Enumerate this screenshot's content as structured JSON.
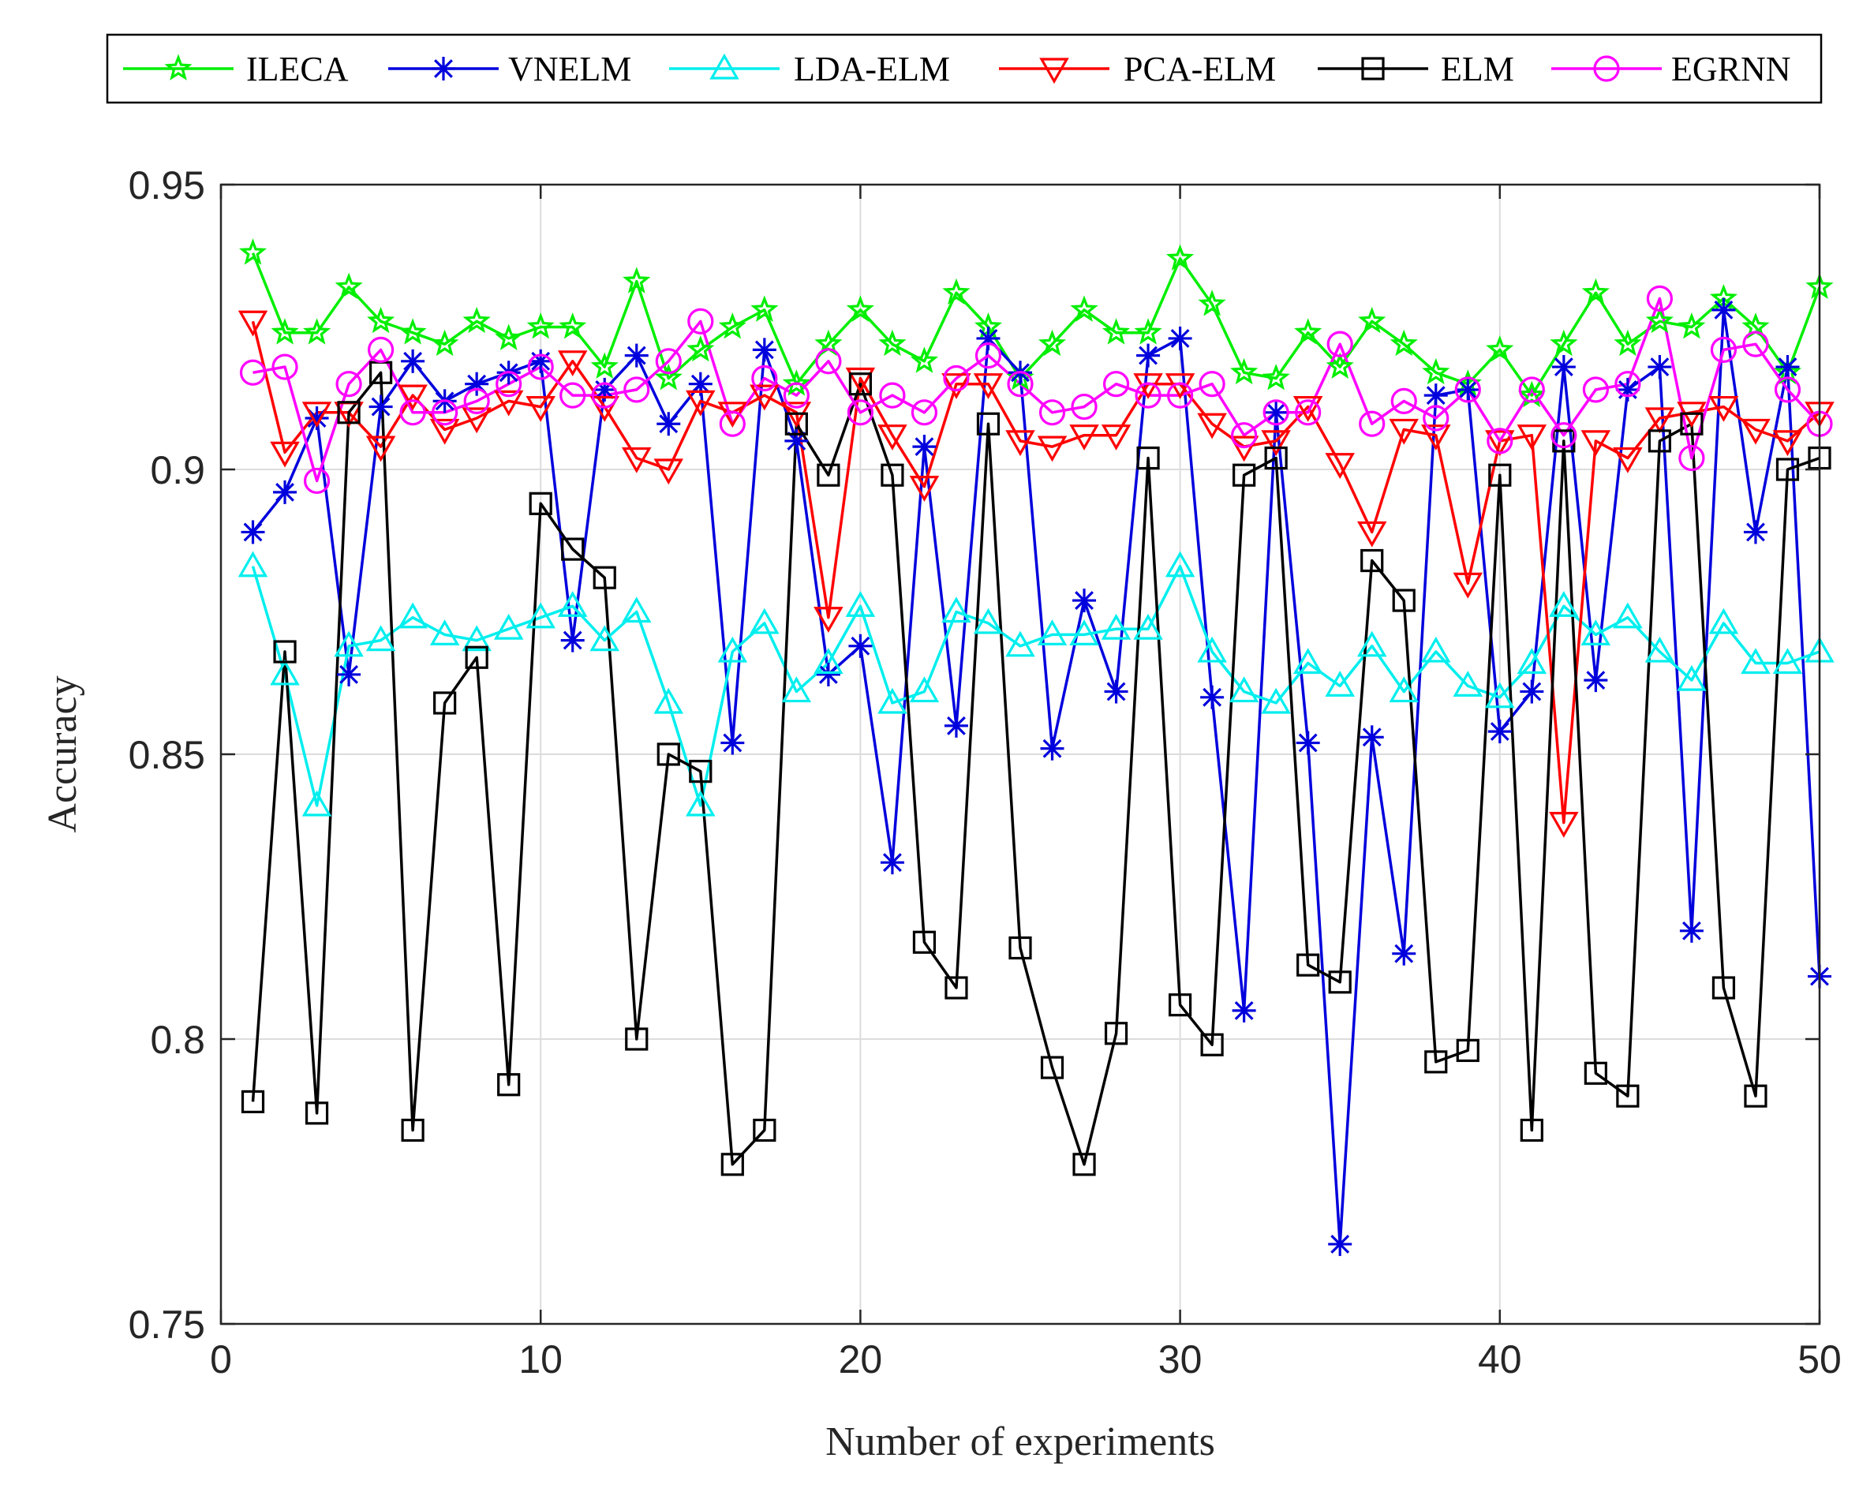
{
  "chart_data": {
    "type": "line",
    "title": "",
    "xlabel": "Number of experiments",
    "ylabel": "Accuracy",
    "xlim": [
      0,
      50
    ],
    "ylim": [
      0.75,
      0.95
    ],
    "xticks": [
      0,
      10,
      20,
      30,
      40,
      50
    ],
    "xtick_labels": [
      "0",
      "10",
      "20",
      "30",
      "40",
      "50"
    ],
    "yticks": [
      0.75,
      0.8,
      0.85,
      0.9,
      0.95
    ],
    "ytick_labels": [
      "0.75",
      "0.8",
      "0.85",
      "0.9",
      "0.95"
    ],
    "grid": true,
    "legend_position": "top, horizontal, outside plot",
    "x": [
      1,
      2,
      3,
      4,
      5,
      6,
      7,
      8,
      9,
      10,
      11,
      12,
      13,
      14,
      15,
      16,
      17,
      18,
      19,
      20,
      21,
      22,
      23,
      24,
      25,
      26,
      27,
      28,
      29,
      30,
      31,
      32,
      33,
      34,
      35,
      36,
      37,
      38,
      39,
      40,
      41,
      42,
      43,
      44,
      45,
      46,
      47,
      48,
      49,
      50
    ],
    "series": [
      {
        "name": "ILECA",
        "color": "#00ee00",
        "marker": "star",
        "values": [
          0.938,
          0.924,
          0.924,
          0.932,
          0.926,
          0.924,
          0.922,
          0.926,
          0.923,
          0.925,
          0.925,
          0.918,
          0.933,
          0.916,
          0.921,
          0.925,
          0.928,
          0.915,
          0.922,
          0.928,
          0.922,
          0.919,
          0.931,
          0.925,
          0.916,
          0.922,
          0.928,
          0.924,
          0.924,
          0.937,
          0.929,
          0.917,
          0.916,
          0.924,
          0.918,
          0.926,
          0.922,
          0.917,
          0.915,
          0.921,
          0.913,
          0.922,
          0.931,
          0.922,
          0.926,
          0.925,
          0.93,
          0.925,
          0.917,
          0.932
        ]
      },
      {
        "name": "VNELM",
        "color": "#0000dd",
        "marker": "asterisk",
        "values": [
          0.889,
          0.896,
          0.909,
          0.864,
          0.911,
          0.919,
          0.912,
          0.915,
          0.917,
          0.919,
          0.87,
          0.914,
          0.92,
          0.908,
          0.915,
          0.852,
          0.921,
          0.905,
          0.864,
          0.869,
          0.831,
          0.904,
          0.855,
          0.923,
          0.917,
          0.851,
          0.877,
          0.861,
          0.92,
          0.923,
          0.86,
          0.805,
          0.91,
          0.852,
          0.764,
          0.853,
          0.815,
          0.913,
          0.914,
          0.854,
          0.861,
          0.918,
          0.863,
          0.914,
          0.918,
          0.819,
          0.928,
          0.889,
          0.918,
          0.811
        ]
      },
      {
        "name": "LDA-ELM",
        "color": "#00eeee",
        "marker": "triangle-up",
        "values": [
          0.883,
          0.864,
          0.841,
          0.869,
          0.87,
          0.874,
          0.871,
          0.87,
          0.872,
          0.874,
          0.876,
          0.87,
          0.875,
          0.859,
          0.841,
          0.868,
          0.873,
          0.861,
          0.866,
          0.876,
          0.859,
          0.861,
          0.875,
          0.873,
          0.869,
          0.871,
          0.871,
          0.872,
          0.872,
          0.883,
          0.868,
          0.861,
          0.859,
          0.866,
          0.862,
          0.869,
          0.861,
          0.868,
          0.862,
          0.86,
          0.866,
          0.876,
          0.871,
          0.874,
          0.868,
          0.863,
          0.873,
          0.866,
          0.866,
          0.868
        ]
      },
      {
        "name": "PCA-ELM",
        "color": "#ff0000",
        "marker": "triangle-down",
        "values": [
          0.926,
          0.903,
          0.91,
          0.91,
          0.904,
          0.913,
          0.907,
          0.909,
          0.912,
          0.911,
          0.919,
          0.911,
          0.902,
          0.9,
          0.912,
          0.91,
          0.913,
          0.91,
          0.874,
          0.916,
          0.906,
          0.897,
          0.915,
          0.915,
          0.905,
          0.904,
          0.906,
          0.906,
          0.915,
          0.915,
          0.908,
          0.904,
          0.905,
          0.911,
          0.901,
          0.889,
          0.907,
          0.906,
          0.88,
          0.905,
          0.906,
          0.838,
          0.905,
          0.902,
          0.909,
          0.91,
          0.911,
          0.907,
          0.905,
          0.91
        ]
      },
      {
        "name": "ELM",
        "color": "#000000",
        "marker": "square",
        "values": [
          0.789,
          0.868,
          0.787,
          0.91,
          0.917,
          0.784,
          0.859,
          0.867,
          0.792,
          0.894,
          0.886,
          0.881,
          0.8,
          0.85,
          0.847,
          0.778,
          0.784,
          0.908,
          0.899,
          0.915,
          0.899,
          0.817,
          0.809,
          0.908,
          0.816,
          0.795,
          0.778,
          0.801,
          0.902,
          0.806,
          0.799,
          0.899,
          0.902,
          0.813,
          0.81,
          0.884,
          0.877,
          0.796,
          0.798,
          0.899,
          0.784,
          0.905,
          0.794,
          0.79,
          0.905,
          0.908,
          0.809,
          0.79,
          0.9,
          0.902
        ]
      },
      {
        "name": "EGRNN",
        "color": "#ff00ff",
        "marker": "circle",
        "values": [
          0.917,
          0.918,
          0.898,
          0.915,
          0.921,
          0.91,
          0.91,
          0.912,
          0.915,
          0.918,
          0.913,
          0.913,
          0.914,
          0.919,
          0.926,
          0.908,
          0.916,
          0.913,
          0.919,
          0.91,
          0.913,
          0.91,
          0.916,
          0.92,
          0.915,
          0.91,
          0.911,
          0.915,
          0.913,
          0.913,
          0.915,
          0.906,
          0.91,
          0.91,
          0.922,
          0.908,
          0.912,
          0.909,
          0.914,
          0.905,
          0.914,
          0.906,
          0.914,
          0.915,
          0.93,
          0.902,
          0.921,
          0.922,
          0.914,
          0.908
        ]
      }
    ]
  }
}
